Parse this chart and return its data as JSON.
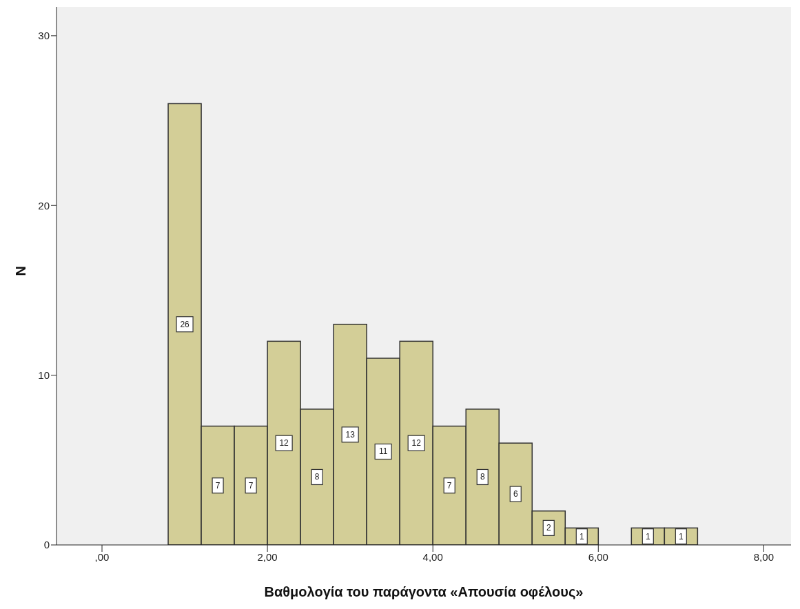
{
  "chart_data": {
    "type": "histogram",
    "xlabel": "Βαθμολογία του παράγοντα «Απουσία οφέλους»",
    "ylabel": "N",
    "color": "#d3ce97",
    "bins": [
      0.8,
      1.2,
      1.6,
      2.0,
      2.4,
      2.8,
      3.2,
      3.6,
      4.0,
      4.4,
      4.8,
      5.2,
      5.6,
      6.0,
      6.4,
      6.8,
      7.2
    ],
    "values": [
      26,
      7,
      7,
      12,
      8,
      13,
      11,
      12,
      7,
      8,
      6,
      2,
      1,
      0,
      1,
      1
    ],
    "value_labels": [
      "26",
      "7",
      "7",
      "12",
      "8",
      "13",
      "11",
      "12",
      "7",
      "8",
      "6",
      "2",
      "1",
      null,
      "1",
      "1"
    ],
    "xlim": [
      -0.55,
      8.33
    ],
    "ylim": [
      0,
      31.7
    ],
    "xticks": [
      {
        "value": 0,
        "label": ",00"
      },
      {
        "value": 2,
        "label": "2,00"
      },
      {
        "value": 4,
        "label": "4,00"
      },
      {
        "value": 6,
        "label": "6,00"
      },
      {
        "value": 8,
        "label": "8,00"
      }
    ],
    "yticks": [
      0,
      10,
      20,
      30
    ],
    "grid": false
  }
}
